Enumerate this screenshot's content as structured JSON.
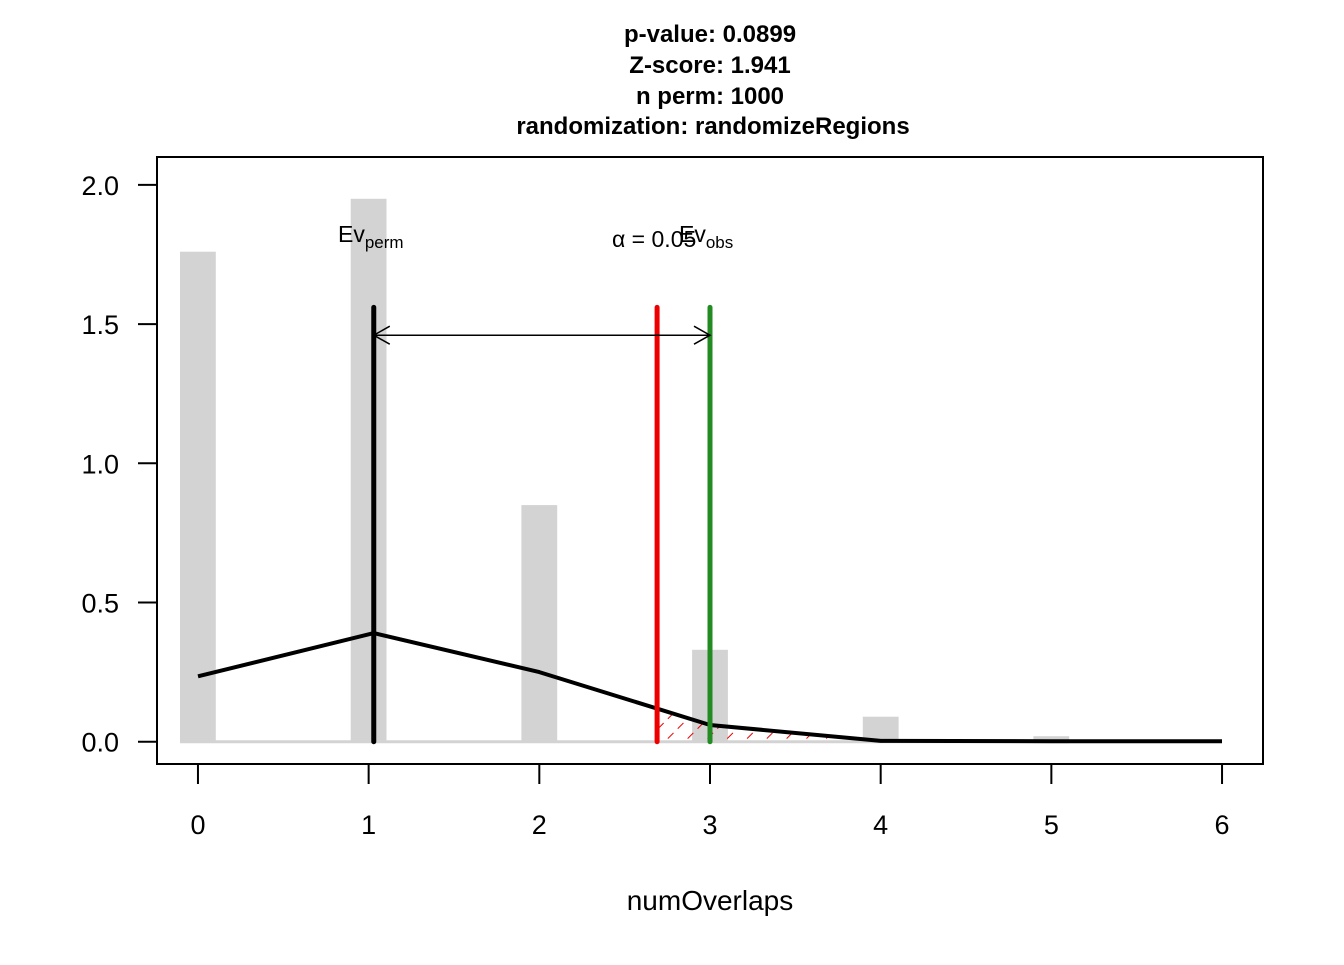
{
  "chart_data": {
    "type": "bar",
    "title_lines": [
      "p-value:  0.0899",
      "Z-score:  1.941",
      "n perm:  1000",
      "randomization:  randomizeRegions"
    ],
    "xlabel": "numOverlaps",
    "ylabel": "",
    "xlim": [
      -0.24,
      6.24
    ],
    "ylim": [
      -0.08,
      2.1
    ],
    "x_ticks": [
      0,
      1,
      2,
      3,
      4,
      5,
      6
    ],
    "y_ticks": [
      "0.0",
      "0.5",
      "1.0",
      "1.5",
      "2.0"
    ],
    "y_tick_values": [
      0,
      0.5,
      1.0,
      1.5,
      2.0
    ],
    "histogram": {
      "name": "permuted numOverlaps",
      "bins": [
        {
          "x": 0,
          "density": 1.76
        },
        {
          "x": 1,
          "density": 1.95
        },
        {
          "x": 2,
          "density": 0.85
        },
        {
          "x": 3,
          "density": 0.33
        },
        {
          "x": 4,
          "density": 0.09
        },
        {
          "x": 5,
          "density": 0.02
        }
      ],
      "color": "#d3d3d3"
    },
    "density_curve": {
      "x": [
        0,
        1.03,
        2,
        3,
        4,
        5,
        6
      ],
      "y": [
        0.235,
        0.39,
        0.25,
        0.06,
        0.003,
        0.002,
        0.002
      ],
      "color": "#000000"
    },
    "lines": {
      "ev_perm": {
        "x": 1.03,
        "color": "#000000",
        "label": "Ev",
        "label_sub": "perm"
      },
      "alpha": {
        "x": 2.69,
        "color": "#ee0000",
        "label": "α = 0.05"
      },
      "ev_obs": {
        "x": 3.0,
        "color": "#228b22",
        "label": "Ev",
        "label_sub": "obs"
      }
    },
    "arrow": {
      "from": 1.03,
      "to": 3.0,
      "y": 1.46
    },
    "line_top": 1.56
  }
}
